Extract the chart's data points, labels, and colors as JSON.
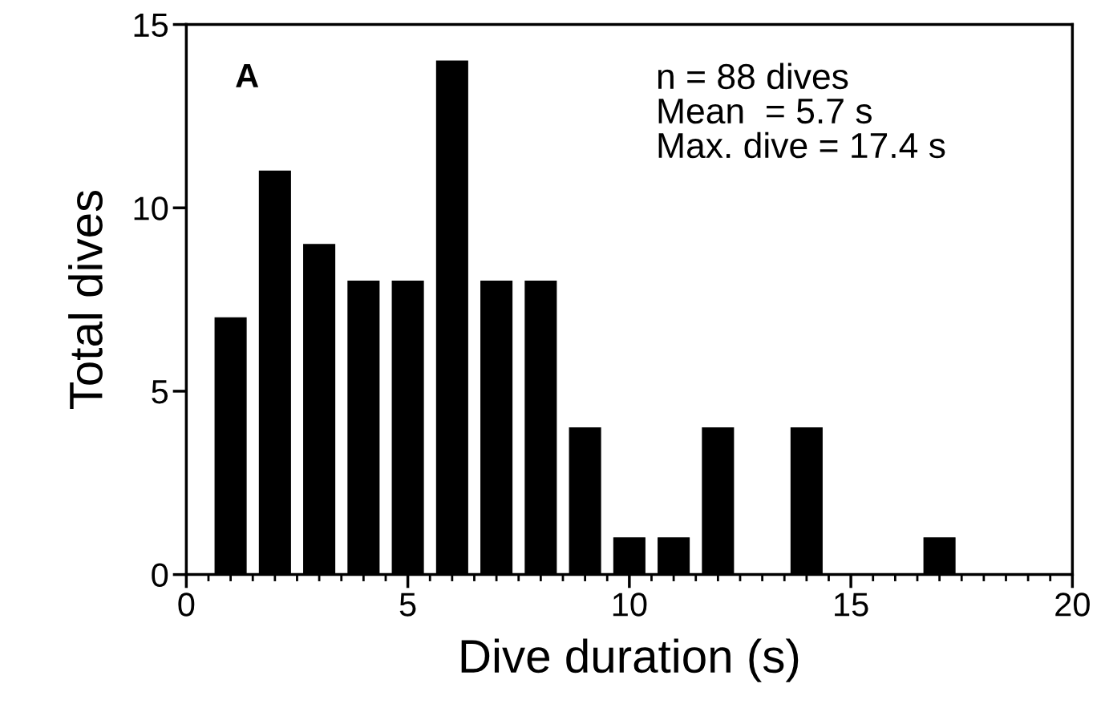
{
  "chart_data": {
    "type": "bar",
    "x": [
      1,
      2,
      3,
      4,
      5,
      6,
      7,
      8,
      9,
      10,
      11,
      12,
      13,
      14,
      15,
      16,
      17
    ],
    "values": [
      7,
      11,
      9,
      8,
      8,
      14,
      8,
      8,
      4,
      1,
      1,
      4,
      0,
      4,
      0,
      0,
      1
    ],
    "color": "#000000",
    "xlabel": "Dive duration (s)",
    "ylabel": "Total dives",
    "xlim": [
      0,
      20
    ],
    "ylim": [
      0,
      15
    ],
    "xticks": [
      0,
      {
        "value": 0.5,
        "label": null
      },
      {
        "value": 1,
        "label": null
      },
      {
        "value": 1.5,
        "label": null
      },
      {
        "value": 2,
        "label": null
      },
      {
        "value": 2.5,
        "label": null
      },
      {
        "value": 3,
        "label": null
      },
      {
        "value": 3.5,
        "label": null
      },
      {
        "value": 4,
        "label": null
      },
      {
        "value": 4.5,
        "label": null
      },
      5,
      {
        "value": 5.5,
        "label": null
      },
      {
        "value": 6,
        "label": null
      },
      {
        "value": 6.5,
        "label": null
      },
      {
        "value": 7,
        "label": null
      },
      {
        "value": 7.5,
        "label": null
      },
      {
        "value": 8,
        "label": null
      },
      {
        "value": 8.5,
        "label": null
      },
      {
        "value": 9,
        "label": null
      },
      {
        "value": 9.5,
        "label": null
      },
      10,
      {
        "value": 10.5,
        "label": null
      },
      {
        "value": 11,
        "label": null
      },
      {
        "value": 11.5,
        "label": null
      },
      {
        "value": 12,
        "label": null
      },
      {
        "value": 12.5,
        "label": null
      },
      {
        "value": 13,
        "label": null
      },
      {
        "value": 13.5,
        "label": null
      },
      {
        "value": 14,
        "label": null
      },
      {
        "value": 14.5,
        "label": null
      },
      15,
      {
        "value": 15.5,
        "label": null
      },
      {
        "value": 16,
        "label": null
      },
      {
        "value": 16.5,
        "label": null
      },
      {
        "value": 17,
        "label": null
      },
      {
        "value": 17.5,
        "label": null
      },
      {
        "value": 18,
        "label": null
      },
      {
        "value": 18.5,
        "label": null
      },
      {
        "value": 19,
        "label": null
      },
      {
        "value": 19.5,
        "label": null
      },
      20
    ],
    "yticks": [
      0,
      5,
      10,
      15
    ],
    "grid": false,
    "annotations": [
      "A",
      "n = 88 dives\nMean  = 5.7 s\nMax. dive = 17.4 s"
    ]
  }
}
